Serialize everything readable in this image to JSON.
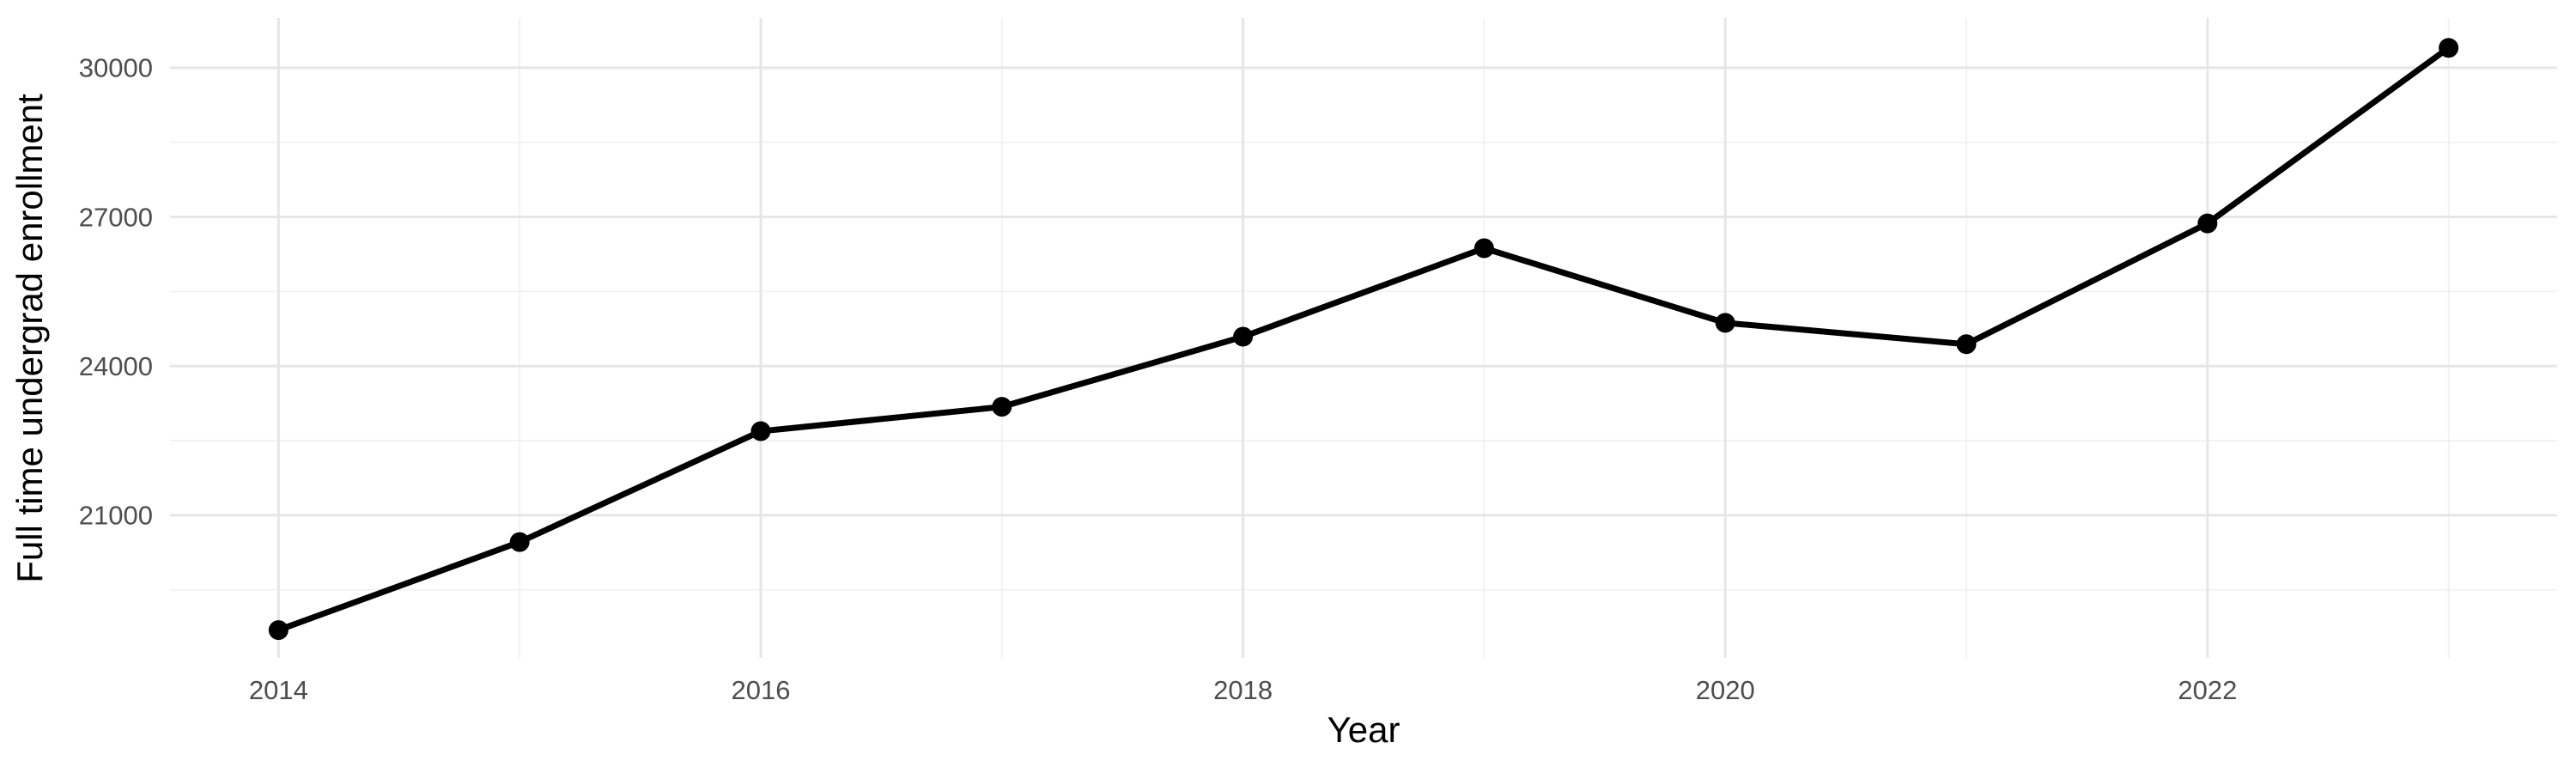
{
  "figure": {
    "background_color": "#FFFFFF"
  },
  "chart_data": {
    "type": "line",
    "title": "",
    "xlabel": "Year",
    "ylabel": "Full time undergrad enrollment",
    "series": [
      {
        "name": "Full time undergrad enrollment",
        "x": [
          2014,
          2015,
          2016,
          2017,
          2018,
          2019,
          2020,
          2021,
          2022,
          2023
        ],
        "values": [
          18690,
          20460,
          22690,
          23180,
          24590,
          26370,
          24870,
          24440,
          26870,
          30400
        ]
      }
    ],
    "x_major_ticks": [
      2014,
      2016,
      2018,
      2020,
      2022
    ],
    "x_major_tick_labels": [
      "2014",
      "2016",
      "2018",
      "2020",
      "2022"
    ],
    "x_minor_gridlines": [
      2015,
      2017,
      2019,
      2021,
      2023
    ],
    "y_major_ticks": [
      21000,
      24000,
      27000,
      30000
    ],
    "y_major_tick_labels": [
      "21000",
      "24000",
      "27000",
      "30000"
    ],
    "y_minor_gridlines": [
      19500,
      22500,
      25500,
      28500
    ],
    "xlim": [
      2013.55,
      2023.45
    ],
    "ylim": [
      18130,
      31000
    ],
    "grid": "major-and-minor",
    "legend": "none",
    "marker": "filled-circle",
    "colors": {
      "line": "#000000",
      "point": "#000000",
      "grid_major": "#E6E6E6",
      "grid_minor": "#F0F0F0",
      "tick_label": "#4D4D4D",
      "axis_title": "#000000",
      "background": "#FFFFFF"
    }
  }
}
